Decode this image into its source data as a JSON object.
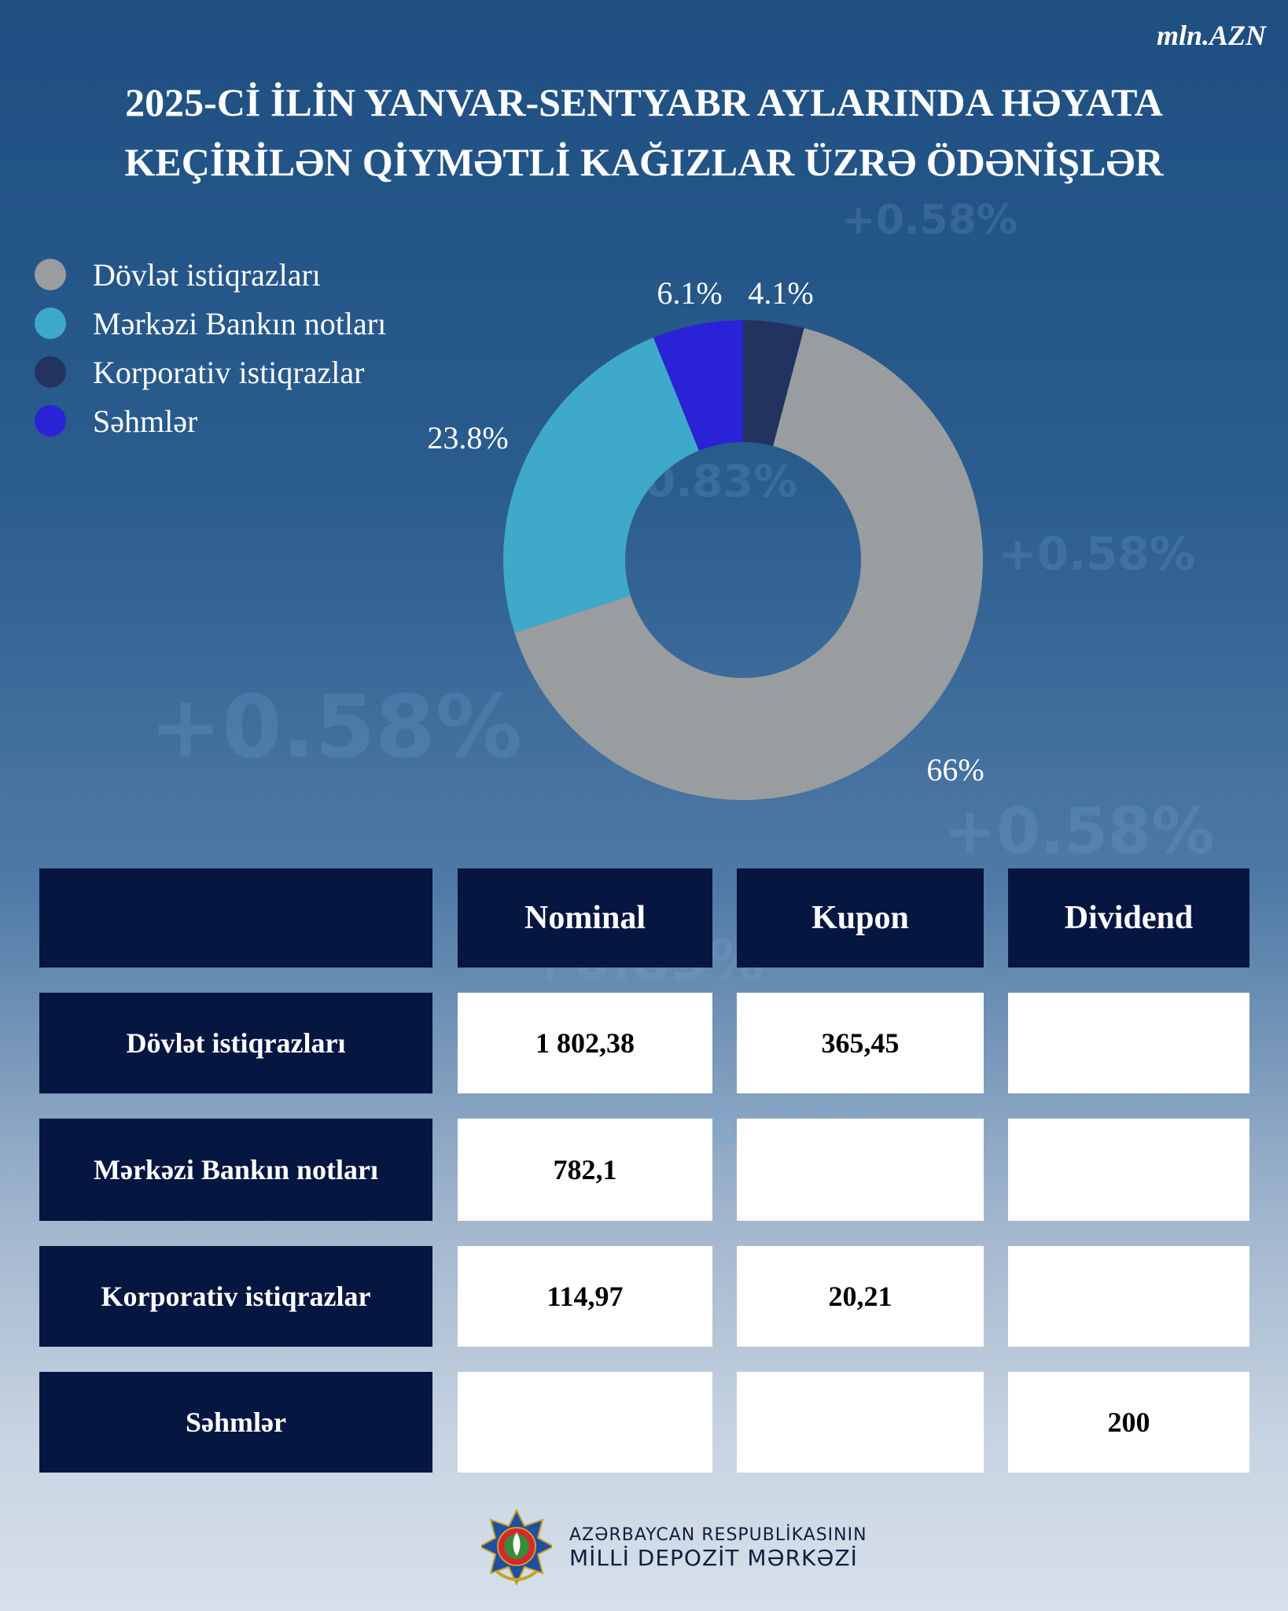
{
  "header": {
    "unit": "mln.AZN",
    "title_line1": "2025-Cİ İLİN YANVAR-SENTYABR AYLARINDA HƏYATA",
    "title_line2": "KEÇİRİLƏN QİYMƏTLİ KAĞIZLAR ÜZRƏ ÖDƏNİŞLƏR"
  },
  "chart_data": {
    "type": "pie",
    "variant": "donut",
    "categories": [
      "Dövlət istiqrazları",
      "Mərkəzi Bankın notları",
      "Korporativ istiqrazlar",
      "Səhmlər"
    ],
    "values": [
      66,
      23.8,
      4.1,
      6.1
    ],
    "labels": [
      "66%",
      "23.8%",
      "4.1%",
      "6.1%"
    ],
    "colors": [
      "#9a9d9f",
      "#3fa9c9",
      "#23335f",
      "#2a22d6"
    ],
    "legend_position": "top-left"
  },
  "table": {
    "headers": [
      "",
      "Nominal",
      "Kupon",
      "Dividend"
    ],
    "rows": [
      {
        "label": "Dövlət istiqrazları",
        "nominal": "1 802,38",
        "kupon": "365,45",
        "dividend": ""
      },
      {
        "label": "Mərkəzi Bankın notları",
        "nominal": "782,1",
        "kupon": "",
        "dividend": ""
      },
      {
        "label": "Korporativ istiqrazlar",
        "nominal": "114,97",
        "kupon": "20,21",
        "dividend": ""
      },
      {
        "label": "Səhmlər",
        "nominal": "",
        "kupon": "",
        "dividend": "200"
      }
    ]
  },
  "footer": {
    "line1": "AZƏRBAYCAN RESPUBLİKASININ",
    "line2": "MİLLİ DEPOZİT MƏRKƏZİ",
    "logo_icon": "national-emblem-icon"
  }
}
